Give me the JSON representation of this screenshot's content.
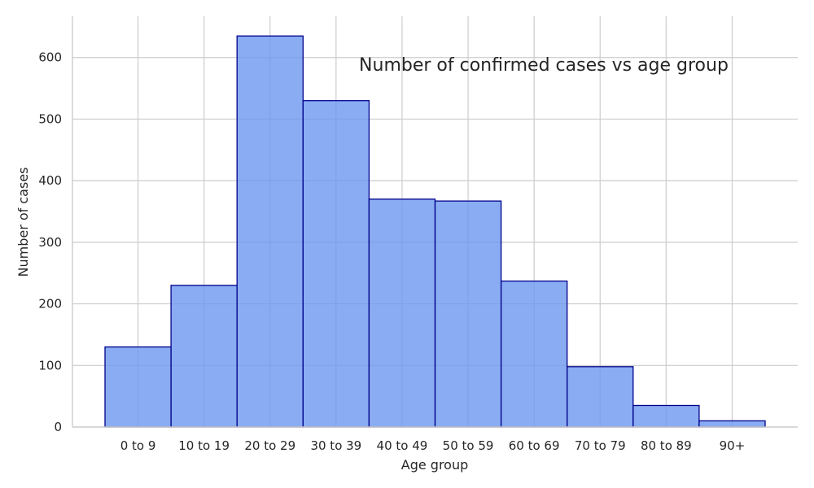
{
  "chart_data": {
    "type": "bar",
    "title": "Number of confirmed cases vs age group",
    "xlabel": "Age group",
    "ylabel": "Number of cases",
    "categories": [
      "0 to 9",
      "10 to 19",
      "20 to 29",
      "30 to 39",
      "40 to 49",
      "50 to 59",
      "60 to 69",
      "70 to 79",
      "80 to 89",
      "90+"
    ],
    "values": [
      130,
      230,
      635,
      530,
      370,
      367,
      237,
      98,
      35,
      10
    ],
    "ylim": [
      0,
      667
    ],
    "yticks": [
      0,
      100,
      200,
      300,
      400,
      500,
      600
    ],
    "grid": true,
    "bar_fill": "#6d97ef",
    "bar_edge": "#00008b",
    "grid_color": "#cccccc"
  }
}
